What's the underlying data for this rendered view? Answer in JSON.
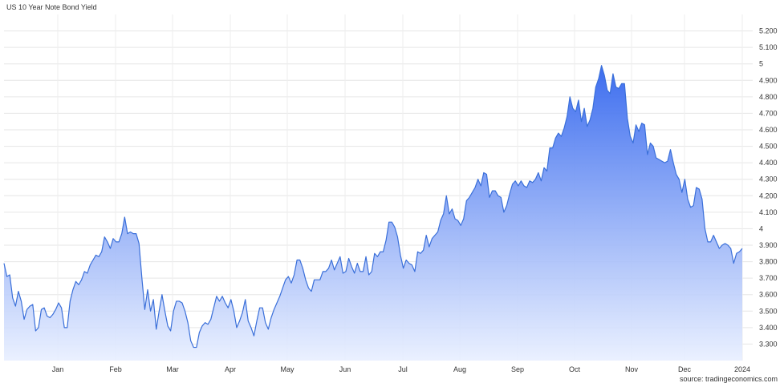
{
  "chart_data": {
    "type": "area",
    "title": "US 10 Year Note Bond Yield",
    "source": "source: tradingeconomics.com",
    "xlabel": "",
    "ylabel": "",
    "grid": true,
    "ylim": [
      3.2,
      5.3
    ],
    "y_ticks": [
      "3.300",
      "3.400",
      "3.500",
      "3.600",
      "3.700",
      "3.800",
      "3.900",
      "4",
      "4.100",
      "4.200",
      "4.300",
      "4.400",
      "4.500",
      "4.600",
      "4.700",
      "4.800",
      "4.900",
      "5",
      "5.100",
      "5.200"
    ],
    "x_ticks": [
      "Jan",
      "Feb",
      "Mar",
      "Apr",
      "May",
      "Jun",
      "Jul",
      "Aug",
      "Sep",
      "Oct",
      "Nov",
      "Dec",
      "2024"
    ],
    "colors": {
      "line": "#3a6fd9",
      "fill_top": "#3366ee",
      "fill_bottom": "#e8efff"
    },
    "series": [
      {
        "values": [
          3.79,
          3.71,
          3.72,
          3.58,
          3.53,
          3.62,
          3.56,
          3.45,
          3.51,
          3.53,
          3.54,
          3.38,
          3.4,
          3.51,
          3.52,
          3.47,
          3.46,
          3.48,
          3.51,
          3.55,
          3.52,
          3.4,
          3.4,
          3.56,
          3.63,
          3.68,
          3.66,
          3.69,
          3.74,
          3.73,
          3.78,
          3.81,
          3.84,
          3.83,
          3.86,
          3.95,
          3.92,
          3.88,
          3.94,
          3.92,
          3.92,
          3.97,
          4.07,
          3.97,
          3.98,
          3.97,
          3.97,
          3.91,
          3.7,
          3.51,
          3.63,
          3.5,
          3.57,
          3.39,
          3.5,
          3.6,
          3.5,
          3.41,
          3.38,
          3.5,
          3.56,
          3.56,
          3.55,
          3.5,
          3.43,
          3.32,
          3.28,
          3.28,
          3.37,
          3.41,
          3.43,
          3.42,
          3.45,
          3.52,
          3.59,
          3.56,
          3.59,
          3.55,
          3.52,
          3.57,
          3.5,
          3.4,
          3.44,
          3.49,
          3.57,
          3.44,
          3.4,
          3.35,
          3.44,
          3.52,
          3.52,
          3.43,
          3.39,
          3.46,
          3.51,
          3.55,
          3.59,
          3.64,
          3.69,
          3.71,
          3.67,
          3.72,
          3.81,
          3.81,
          3.76,
          3.69,
          3.64,
          3.62,
          3.69,
          3.69,
          3.69,
          3.74,
          3.74,
          3.76,
          3.81,
          3.75,
          3.79,
          3.83,
          3.73,
          3.74,
          3.82,
          3.77,
          3.73,
          3.79,
          3.74,
          3.74,
          3.83,
          3.72,
          3.74,
          3.85,
          3.83,
          3.86,
          3.86,
          3.93,
          4.04,
          4.04,
          4.01,
          3.95,
          3.84,
          3.76,
          3.81,
          3.79,
          3.78,
          3.74,
          3.86,
          3.85,
          3.87,
          3.96,
          3.89,
          3.94,
          3.96,
          3.98,
          4.05,
          4.09,
          4.2,
          4.09,
          4.12,
          4.06,
          4.05,
          4.02,
          4.06,
          4.17,
          4.19,
          4.22,
          4.25,
          4.3,
          4.26,
          4.34,
          4.33,
          4.19,
          4.23,
          4.23,
          4.2,
          4.19,
          4.1,
          4.14,
          4.21,
          4.27,
          4.29,
          4.26,
          4.29,
          4.26,
          4.25,
          4.29,
          4.28,
          4.3,
          4.34,
          4.29,
          4.37,
          4.35,
          4.49,
          4.49,
          4.55,
          4.58,
          4.56,
          4.61,
          4.68,
          4.8,
          4.73,
          4.71,
          4.78,
          4.65,
          4.73,
          4.62,
          4.66,
          4.73,
          4.86,
          4.91,
          4.99,
          4.93,
          4.84,
          4.82,
          4.94,
          4.86,
          4.85,
          4.88,
          4.88,
          4.67,
          4.56,
          4.52,
          4.63,
          4.59,
          4.64,
          4.63,
          4.45,
          4.52,
          4.5,
          4.43,
          4.42,
          4.41,
          4.4,
          4.41,
          4.48,
          4.4,
          4.33,
          4.3,
          4.22,
          4.3,
          4.18,
          4.13,
          4.14,
          4.25,
          4.24,
          4.18,
          4.0,
          3.92,
          3.92,
          3.96,
          3.92,
          3.88,
          3.9,
          3.91,
          3.9,
          3.88,
          3.79,
          3.85,
          3.86,
          3.88
        ]
      }
    ]
  }
}
